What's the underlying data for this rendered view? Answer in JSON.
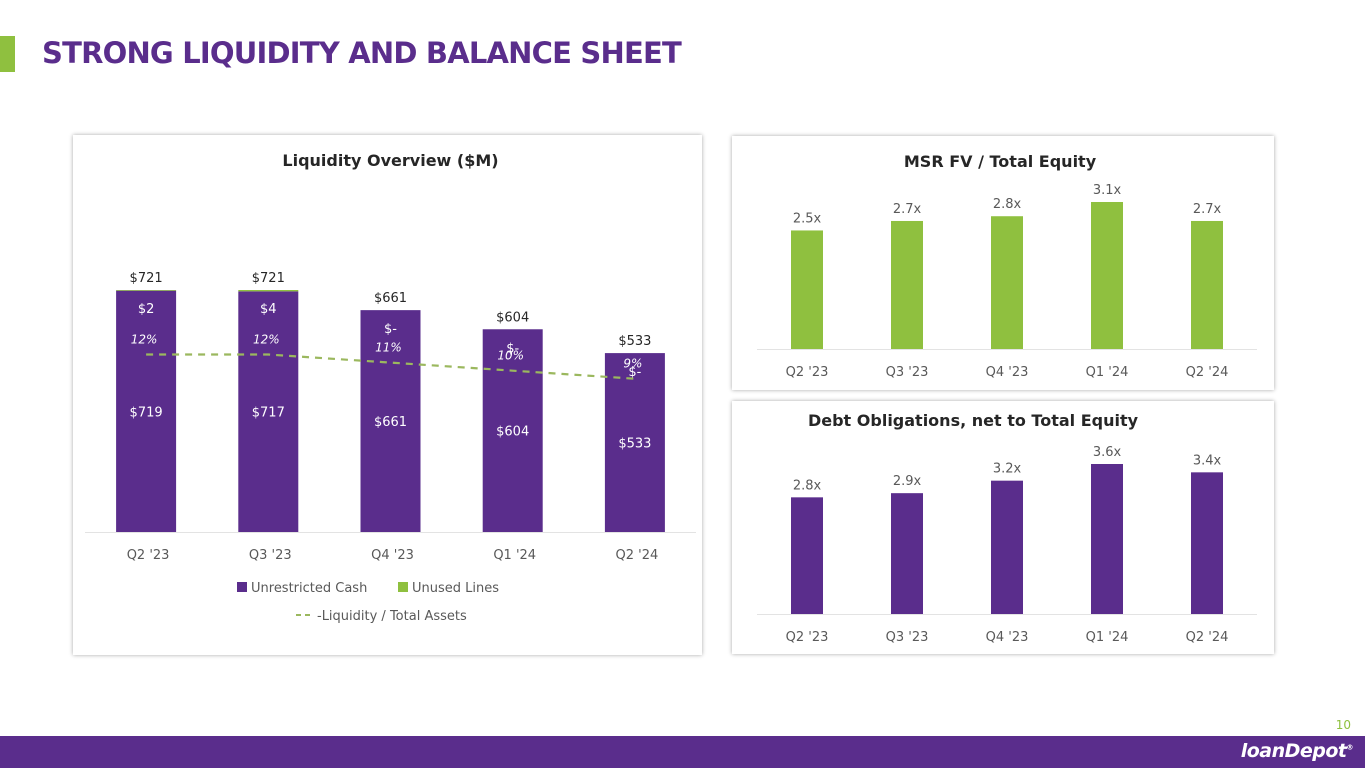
{
  "slide": {
    "title": "STRONG LIQUIDITY AND BALANCE SHEET",
    "page_number": "10",
    "logo_text": "loanDepot",
    "logo_mark": "®"
  },
  "colors": {
    "purple": "#5a2d8c",
    "green": "#8fc03f",
    "line": "#9bb85e",
    "grid": "#e3e3e3",
    "axis_text": "#595959",
    "label_text": "#404040"
  },
  "chart_data": [
    {
      "id": "liquidity",
      "type": "bar",
      "stacked": true,
      "title": "Liquidity Overview ($M)",
      "categories": [
        "Q2 '23",
        "Q3 '23",
        "Q4 '23",
        "Q1 '24",
        "Q2 '24"
      ],
      "series": [
        {
          "name": "Unrestricted Cash",
          "values": [
            719,
            717,
            661,
            604,
            533
          ],
          "labels": [
            "$719",
            "$717",
            "$661",
            "$604",
            "$533"
          ]
        },
        {
          "name": "Unused Lines",
          "values": [
            2,
            4,
            0,
            0,
            0
          ],
          "labels": [
            "$2",
            "$4",
            "$-",
            "$-",
            "$-"
          ]
        }
      ],
      "totals": [
        721,
        721,
        661,
        604,
        533
      ],
      "total_labels": [
        "$721",
        "$721",
        "$661",
        "$604",
        "$533"
      ],
      "line_series": {
        "name": "Liquidity / Total Assets",
        "legend_label": "-Liquidity / Total Assets",
        "values": [
          12,
          12,
          11,
          10,
          9
        ],
        "labels": [
          "12%",
          "12%",
          "11%",
          "10%",
          "9%"
        ],
        "secondary_axis_range": [
          -10,
          20
        ]
      },
      "ylim": [
        0,
        721
      ],
      "legend_position": "bottom",
      "xlabel": "",
      "ylabel": ""
    },
    {
      "id": "msr",
      "type": "bar",
      "title": "MSR FV / Total Equity",
      "categories": [
        "Q2 '23",
        "Q3 '23",
        "Q4 '23",
        "Q1 '24",
        "Q2 '24"
      ],
      "values": [
        2.5,
        2.7,
        2.8,
        3.1,
        2.7
      ],
      "labels": [
        "2.5x",
        "2.7x",
        "2.8x",
        "3.1x",
        "2.7x"
      ],
      "ylim": [
        0,
        3.1
      ],
      "xlabel": "",
      "ylabel": ""
    },
    {
      "id": "debt",
      "type": "bar",
      "title": "Debt Obligations, net to Total Equity",
      "categories": [
        "Q2 '23",
        "Q3 '23",
        "Q4 '23",
        "Q1 '24",
        "Q2 '24"
      ],
      "values": [
        2.8,
        2.9,
        3.2,
        3.6,
        3.4
      ],
      "labels": [
        "2.8x",
        "2.9x",
        "3.2x",
        "3.6x",
        "3.4x"
      ],
      "ylim": [
        0,
        3.6
      ],
      "xlabel": "",
      "ylabel": ""
    }
  ]
}
